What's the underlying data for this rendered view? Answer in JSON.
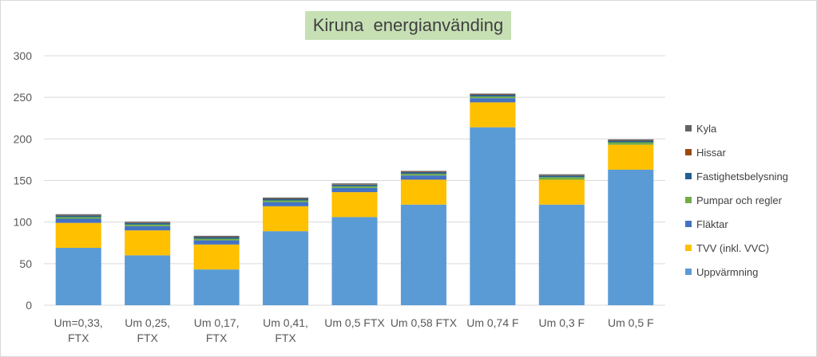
{
  "chart_data": {
    "type": "bar",
    "stacked": true,
    "title": "Kiruna  energianvänding",
    "xlabel": "",
    "ylabel": "",
    "ylim": [
      0,
      300
    ],
    "yticks": [
      0,
      50,
      100,
      150,
      200,
      250,
      300
    ],
    "grid": true,
    "legend_position": "right",
    "categories": [
      [
        "Um=0,33,",
        "FTX"
      ],
      [
        "Um 0,25,",
        "FTX"
      ],
      [
        "Um 0,17,",
        "FTX"
      ],
      [
        "Um 0,41,",
        "FTX"
      ],
      [
        "Um 0,5 FTX"
      ],
      [
        "Um 0,58 FTX"
      ],
      [
        "Um 0,74 F"
      ],
      [
        "Um 0,3 F"
      ],
      [
        "Um 0,5 F"
      ]
    ],
    "series": [
      {
        "name": "Uppvärmning",
        "color": "#5b9bd5",
        "values": [
          69,
          60,
          43,
          89,
          106,
          121,
          214,
          121,
          163
        ]
      },
      {
        "name": "TVV (inkl. VVC)",
        "color": "#ffc000",
        "values": [
          30,
          30,
          30,
          30,
          30,
          30,
          30,
          30,
          30
        ]
      },
      {
        "name": "Fläktar",
        "color": "#4472c4",
        "values": [
          5,
          5,
          5,
          5,
          5,
          5,
          5,
          0,
          0
        ]
      },
      {
        "name": "Pumpar och regler",
        "color": "#70ad47",
        "values": [
          2,
          2,
          2,
          2,
          2,
          2,
          2,
          3,
          3
        ]
      },
      {
        "name": "Fastighetsbelysning",
        "color": "#255e91",
        "values": [
          2,
          2,
          2,
          2,
          2,
          2,
          2,
          2,
          2
        ]
      },
      {
        "name": "Hissar",
        "color": "#9e480e",
        "values": [
          0.5,
          0.5,
          0.5,
          0.5,
          0.5,
          0.5,
          0.5,
          0.5,
          0.5
        ]
      },
      {
        "name": "Kyla",
        "color": "#636363",
        "values": [
          1,
          1,
          1,
          1,
          1,
          1,
          1,
          1,
          1
        ]
      }
    ]
  }
}
